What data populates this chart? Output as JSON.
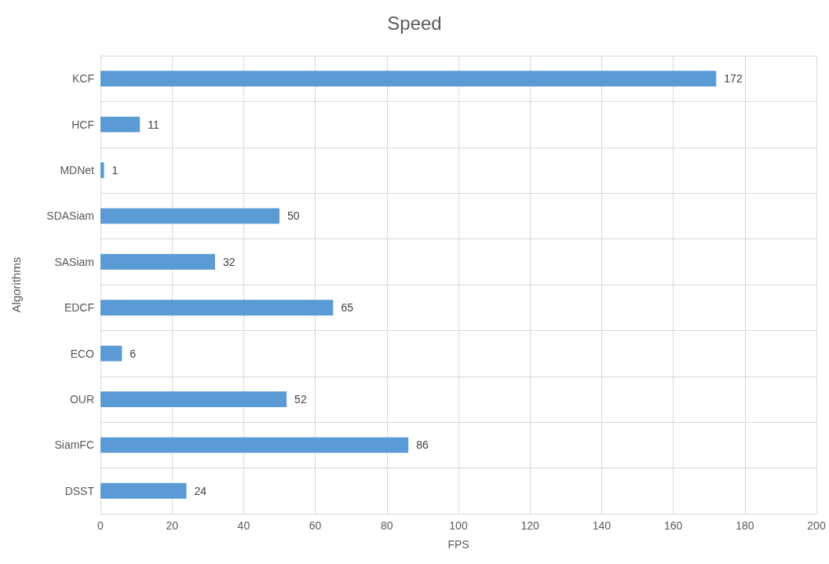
{
  "chart_data": {
    "type": "bar",
    "orientation": "horizontal",
    "title": "Speed",
    "xlabel": "FPS",
    "ylabel": "Algorithms",
    "categories": [
      "KCF",
      "HCF",
      "MDNet",
      "SDASiam",
      "SASiam",
      "EDCF",
      "ECO",
      "OUR",
      "SiamFC",
      "DSST"
    ],
    "values": [
      172,
      11,
      1,
      50,
      32,
      65,
      6,
      52,
      86,
      24
    ],
    "color": "#5b9bd5",
    "xlim": [
      0,
      200
    ],
    "xticks": [
      0,
      20,
      40,
      60,
      80,
      100,
      120,
      140,
      160,
      180,
      200
    ],
    "grid": true,
    "data_labels": true
  }
}
